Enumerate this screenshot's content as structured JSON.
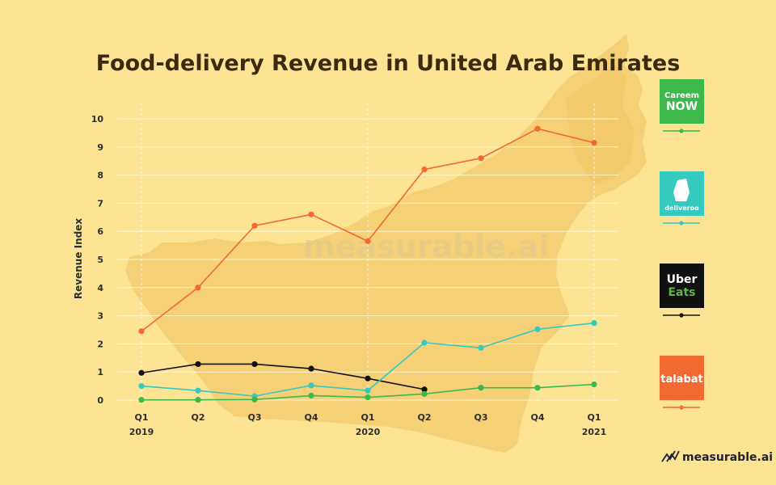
{
  "chart_data": {
    "type": "line",
    "title": "Food-delivery Revenue in United Arab Emirates",
    "ylabel": "Revenue Index",
    "ylim": [
      0,
      10
    ],
    "yticks": [
      "0",
      "1",
      "2",
      "3",
      "4",
      "5",
      "6",
      "7",
      "8",
      "9",
      "10"
    ],
    "x_quarters": [
      "Q1",
      "Q2",
      "Q3",
      "Q4",
      "Q1",
      "Q2",
      "Q3",
      "Q4",
      "Q1"
    ],
    "x_years": [
      "2019",
      "",
      "",
      "",
      "2020",
      "",
      "",
      "",
      "2021"
    ],
    "grid": true,
    "legend_position": "right",
    "series": [
      {
        "name": "talabat",
        "color": "#f26a30",
        "values": [
          2.45,
          4.0,
          6.2,
          6.6,
          5.65,
          8.2,
          8.6,
          9.65,
          9.15
        ]
      },
      {
        "name": "Uber Eats",
        "color": "#111111",
        "values": [
          0.97,
          1.28,
          1.28,
          1.12,
          0.77,
          0.38,
          null,
          null,
          null
        ]
      },
      {
        "name": "deliveroo",
        "color": "#35c9c0",
        "values": [
          0.5,
          0.34,
          0.14,
          0.52,
          0.34,
          2.04,
          1.86,
          2.52,
          2.74
        ]
      },
      {
        "name": "Careem NOW",
        "color": "#3db84a",
        "values": [
          0.01,
          0.01,
          0.02,
          0.16,
          0.1,
          0.22,
          0.44,
          0.44,
          0.56
        ]
      }
    ]
  },
  "legend": [
    {
      "key": "careem",
      "line1": "Careem",
      "line2": "NOW",
      "bg": "#3db84a",
      "fg": "#ffffff",
      "line_color": "#3db84a"
    },
    {
      "key": "deliveroo",
      "line1": "deliveroo",
      "bg": "#35c9c0",
      "fg": "#ffffff",
      "line_color": "#35c9c0"
    },
    {
      "key": "ubereats",
      "line1": "Uber",
      "line2": "Eats",
      "bg": "#111111",
      "fg": "#ffffff",
      "fg2": "#5fb548",
      "line_color": "#111111"
    },
    {
      "key": "talabat",
      "line1": "talabat",
      "bg": "#f26a30",
      "fg": "#ffffff",
      "line_color": "#f26a30"
    }
  ],
  "watermark": "measurable.ai",
  "brand": "measurable.ai",
  "colors": {
    "background": "#fde495",
    "map": "#f5cd72",
    "grid": "#fff3cf"
  }
}
